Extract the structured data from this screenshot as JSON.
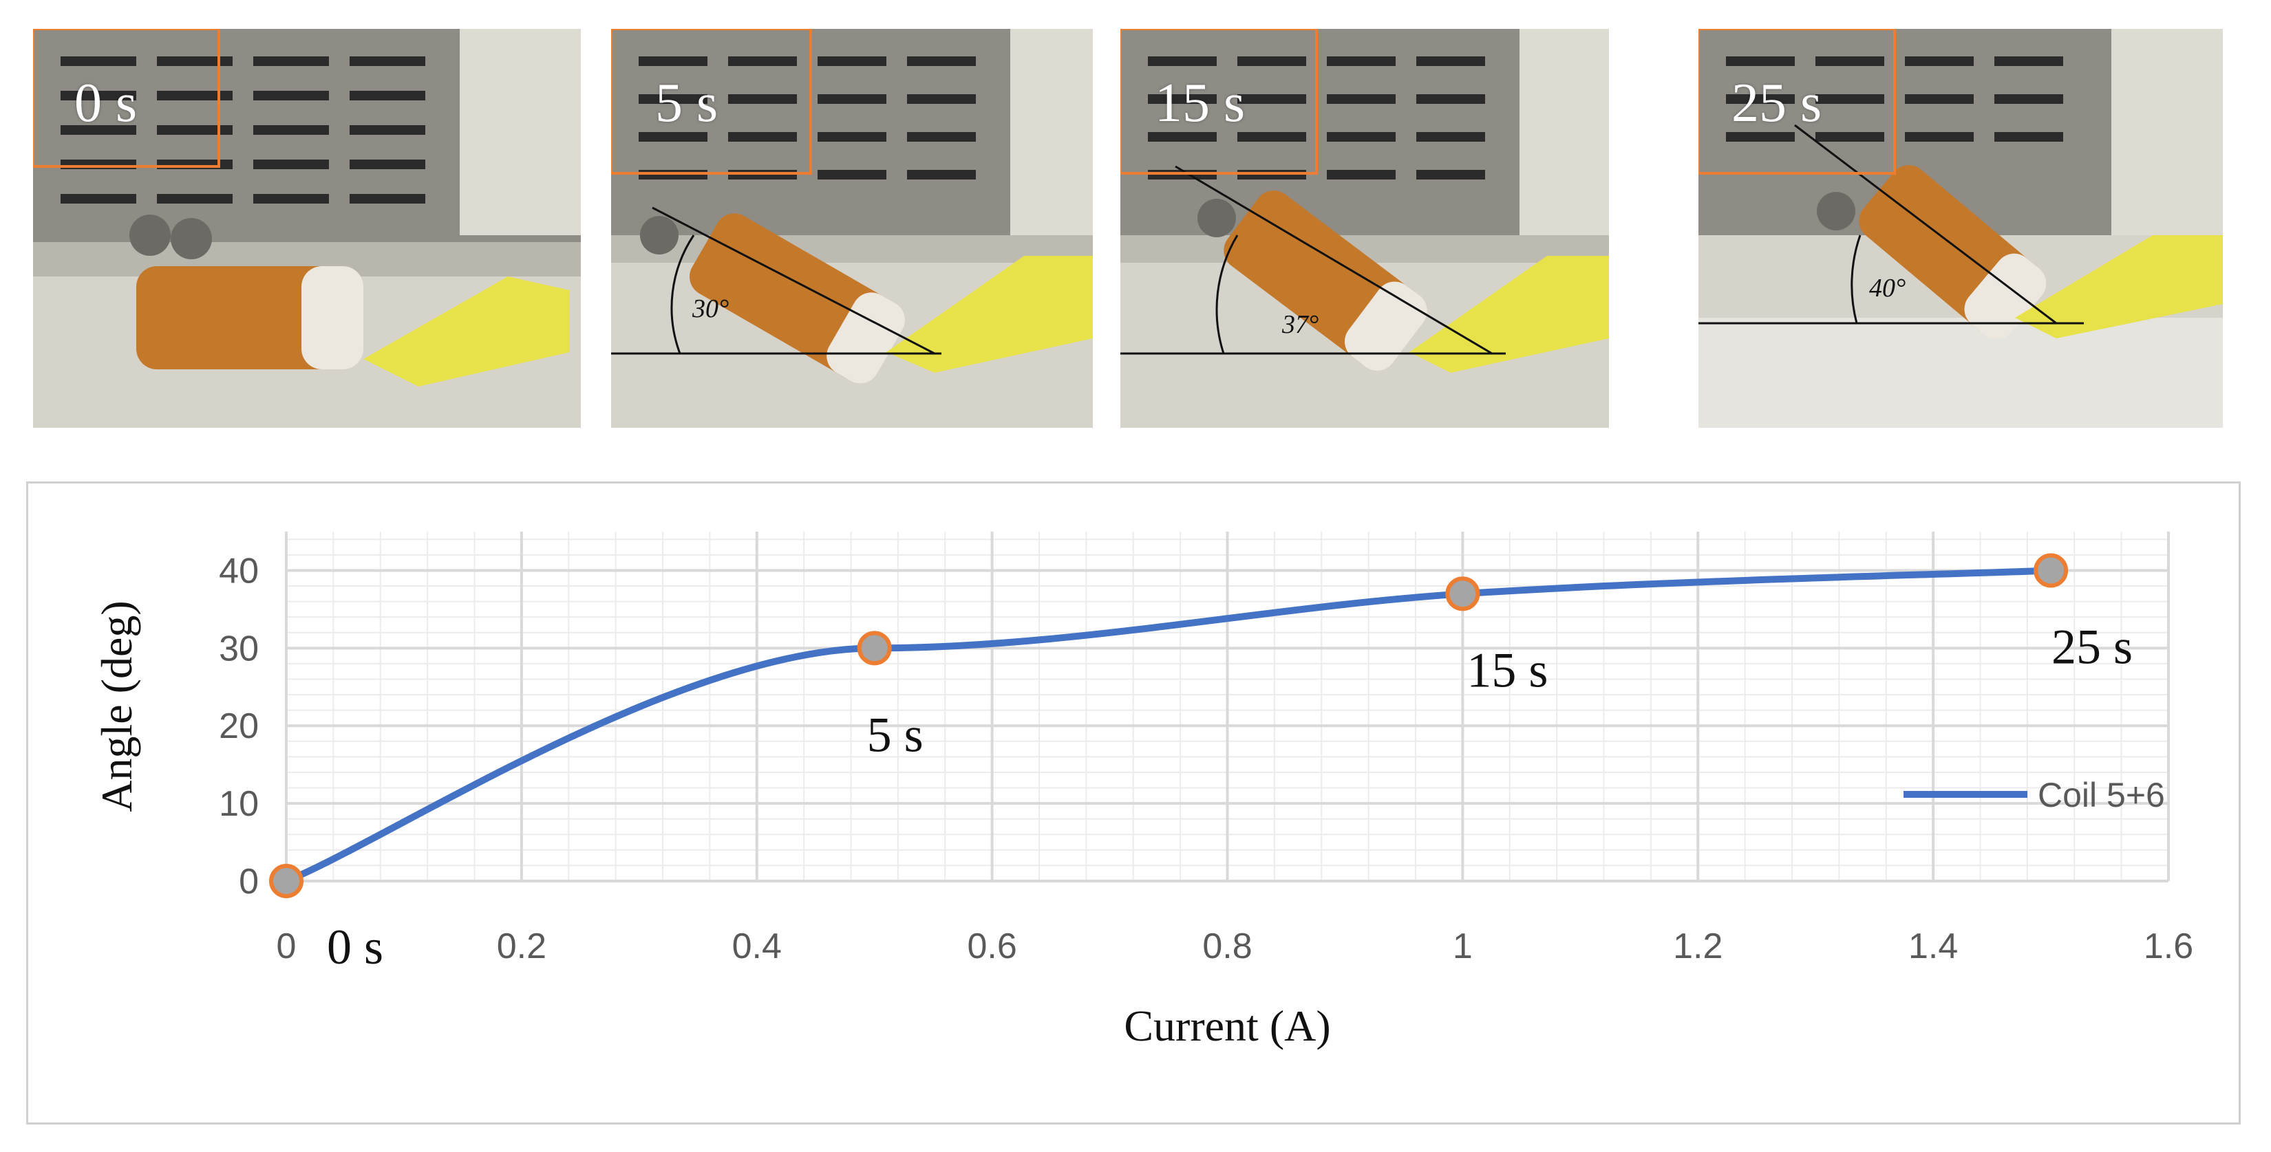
{
  "photo_panels": [
    {
      "time_label": "0 s",
      "angle_label": ""
    },
    {
      "time_label": "5 s",
      "angle_label": "30°"
    },
    {
      "time_label": "15 s",
      "angle_label": "37°"
    },
    {
      "time_label": "25 s",
      "angle_label": "40°"
    }
  ],
  "colors": {
    "series_line": "#4472C4",
    "marker_fill": "#A5A5A5",
    "marker_edge": "#ED7D31",
    "highlight_box": "#ED7D31",
    "grid": "#d9d9d9"
  },
  "chart_data": {
    "type": "line",
    "title": "",
    "xlabel": "Current (A)",
    "ylabel": "Angle (deg)",
    "xlim": [
      0,
      1.6
    ],
    "ylim": [
      0,
      45
    ],
    "x_ticks": [
      0,
      0.2,
      0.4,
      0.6,
      0.8,
      1,
      1.2,
      1.4,
      1.6
    ],
    "y_ticks": [
      0,
      10,
      20,
      30,
      40
    ],
    "grid": true,
    "legend_position": "right",
    "series": [
      {
        "name": "Coil 5+6",
        "smooth": true,
        "x": [
          0,
          0.5,
          1,
          1.5
        ],
        "y": [
          0,
          30,
          37,
          40
        ]
      }
    ],
    "annotations": [
      "0 s",
      "5 s",
      "15 s",
      "25 s"
    ]
  }
}
